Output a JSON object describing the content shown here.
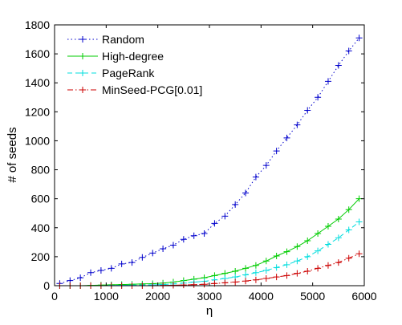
{
  "chart_data": {
    "type": "line",
    "xlabel": "η",
    "ylabel": "# of seeds",
    "xlim": [
      0,
      6000
    ],
    "ylim": [
      0,
      1800
    ],
    "xticks": [
      0,
      1000,
      2000,
      3000,
      4000,
      5000,
      6000
    ],
    "yticks": [
      0,
      200,
      400,
      600,
      800,
      1000,
      1200,
      1400,
      1600,
      1800
    ],
    "grid": false,
    "legend_position": "top-left",
    "x": [
      100,
      300,
      500,
      700,
      900,
      1100,
      1300,
      1500,
      1700,
      1900,
      2100,
      2300,
      2500,
      2700,
      2900,
      3100,
      3300,
      3500,
      3700,
      3900,
      4100,
      4300,
      4500,
      4700,
      4900,
      5100,
      5300,
      5500,
      5700,
      5900
    ],
    "series": [
      {
        "name": "Random",
        "color": "#0000cc",
        "line_style": "dotted",
        "marker": "plus",
        "values": [
          15,
          35,
          55,
          90,
          105,
          120,
          150,
          160,
          195,
          225,
          255,
          280,
          320,
          345,
          360,
          430,
          480,
          560,
          640,
          750,
          830,
          930,
          1020,
          1110,
          1210,
          1300,
          1410,
          1520,
          1620,
          1710
        ]
      },
      {
        "name": "High-degree",
        "color": "#00cc00",
        "line_style": "solid",
        "marker": "plus",
        "values": [
          0,
          0,
          0,
          2,
          4,
          6,
          8,
          10,
          12,
          14,
          18,
          25,
          35,
          45,
          55,
          70,
          85,
          100,
          120,
          140,
          170,
          205,
          235,
          270,
          310,
          360,
          410,
          460,
          525,
          600
        ]
      },
      {
        "name": "PageRank",
        "color": "#00dddd",
        "line_style": "dashed",
        "marker": "plus",
        "values": [
          0,
          0,
          0,
          0,
          0,
          2,
          3,
          4,
          5,
          6,
          8,
          12,
          18,
          25,
          30,
          40,
          50,
          60,
          75,
          90,
          105,
          125,
          145,
          170,
          200,
          240,
          285,
          330,
          385,
          440
        ]
      },
      {
        "name": "MinSeed-PCG[0.01]",
        "color": "#cc0000",
        "line_style": "dashdot",
        "marker": "plus",
        "values": [
          0,
          0,
          0,
          0,
          0,
          0,
          0,
          0,
          0,
          0,
          2,
          3,
          5,
          7,
          10,
          15,
          20,
          25,
          32,
          40,
          50,
          60,
          70,
          85,
          100,
          120,
          140,
          160,
          190,
          220
        ]
      }
    ]
  }
}
